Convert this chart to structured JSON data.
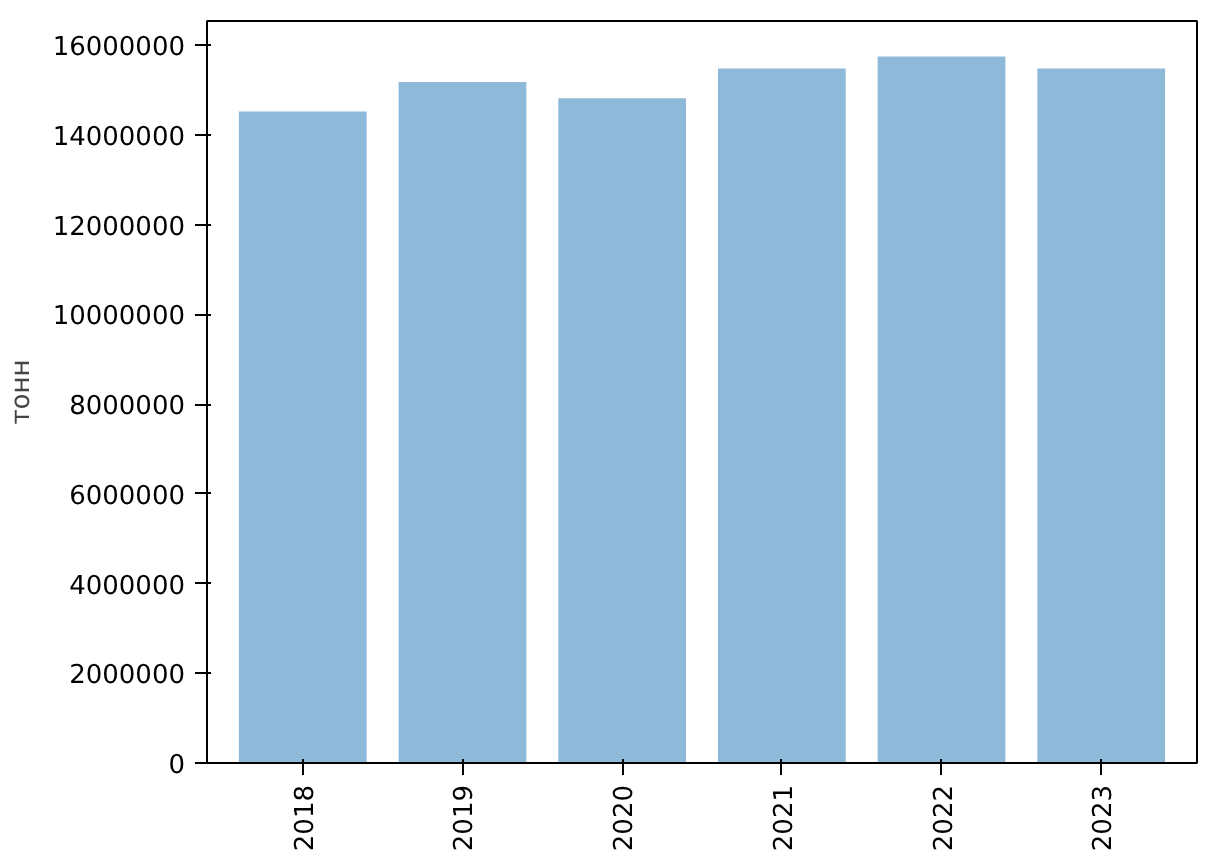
{
  "chart_data": {
    "type": "bar",
    "ylabel": "тонн",
    "categories": [
      "2018",
      "2019",
      "2020",
      "2021",
      "2022",
      "2023"
    ],
    "values": [
      14520000,
      15180000,
      14820000,
      15480000,
      15750000,
      15480000
    ],
    "color": "#8fb9d9",
    "ylim": [
      0,
      16540000
    ],
    "yticks": [
      0,
      2000000,
      4000000,
      6000000,
      8000000,
      10000000,
      12000000,
      14000000,
      16000000
    ],
    "grid": false
  }
}
